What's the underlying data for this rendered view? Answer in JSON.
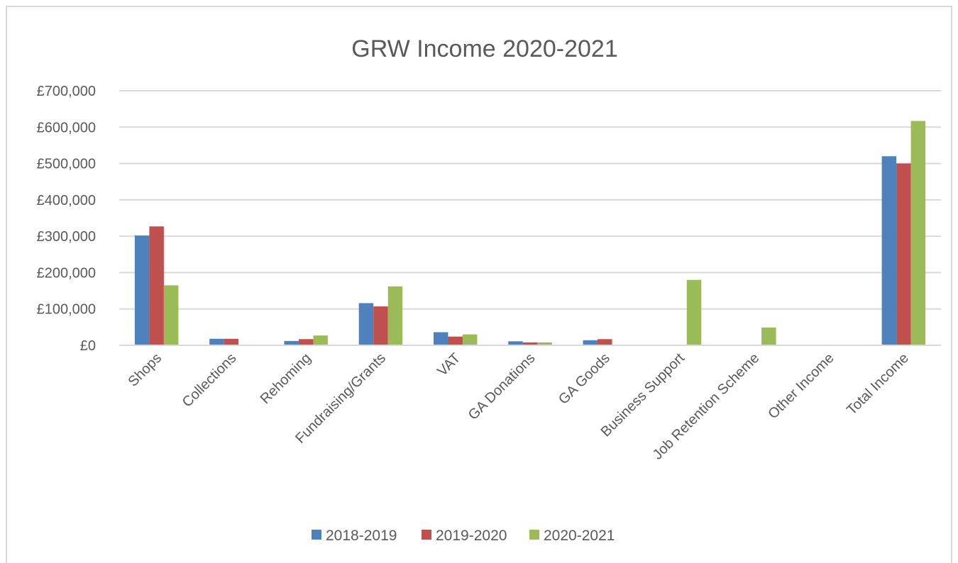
{
  "chart_data": {
    "type": "bar",
    "title": "GRW Income 2020-2021",
    "xlabel": "",
    "ylabel": "",
    "ylim": [
      0,
      700000
    ],
    "yticks": [
      0,
      100000,
      200000,
      300000,
      400000,
      500000,
      600000,
      700000
    ],
    "ytick_labels": [
      "£0",
      "£100,000",
      "£200,000",
      "£300,000",
      "£400,000",
      "£500,000",
      "£600,000",
      "£700,000"
    ],
    "grid": true,
    "legend_position": "bottom",
    "categories": [
      "Shops",
      "Collections",
      "Rehoming",
      "Fundraising/Grants",
      "VAT",
      "GA Donations",
      "GA Goods",
      "Business Support",
      "Job Retention Scheme",
      "Other Income",
      "Total Income"
    ],
    "series": [
      {
        "name": "2018-2019",
        "color": "#4f81bd",
        "values": [
          302000,
          18000,
          12000,
          116000,
          36000,
          11000,
          14000,
          0,
          0,
          0,
          520000
        ]
      },
      {
        "name": "2019-2020",
        "color": "#c0504d",
        "values": [
          327000,
          18000,
          17000,
          107000,
          24000,
          8000,
          17000,
          0,
          0,
          0,
          500000
        ]
      },
      {
        "name": "2020-2021",
        "color": "#9bbb59",
        "values": [
          165000,
          0,
          27000,
          162000,
          30000,
          8000,
          0,
          180000,
          49000,
          0,
          617000
        ]
      }
    ]
  }
}
